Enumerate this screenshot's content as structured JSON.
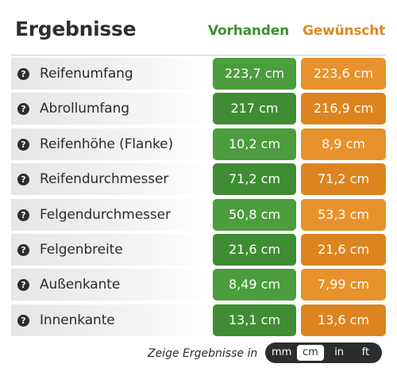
{
  "header": {
    "title": "Ergebnisse",
    "col_have": "Vorhanden",
    "col_want": "Gewünscht"
  },
  "rows": [
    {
      "label": "Reifenumfang",
      "have": "223,7 cm",
      "want": "223,6 cm"
    },
    {
      "label": "Abrollumfang",
      "have": "217 cm",
      "want": "216,9 cm"
    },
    {
      "label": "Reifenhöhe (Flanke)",
      "have": "10,2 cm",
      "want": "8,9 cm"
    },
    {
      "label": "Reifendurchmesser",
      "have": "71,2 cm",
      "want": "71,2 cm"
    },
    {
      "label": "Felgendurchmesser",
      "have": "50,8 cm",
      "want": "53,3 cm"
    },
    {
      "label": "Felgenbreite",
      "have": "21,6 cm",
      "want": "21,6 cm"
    },
    {
      "label": "Außenkante",
      "have": "8,49 cm",
      "want": "7,99 cm"
    },
    {
      "label": "Innenkante",
      "have": "13,1 cm",
      "want": "13,6 cm"
    }
  ],
  "help_glyph": "?",
  "footer": {
    "label": "Zeige Ergebnisse in",
    "units": [
      "mm",
      "cm",
      "in",
      "ft"
    ],
    "selected_unit": "cm"
  },
  "colors": {
    "have": "#4c9d3e",
    "want": "#e7922c",
    "title_have": "#3e8e33",
    "title_want": "#dc8a22"
  }
}
